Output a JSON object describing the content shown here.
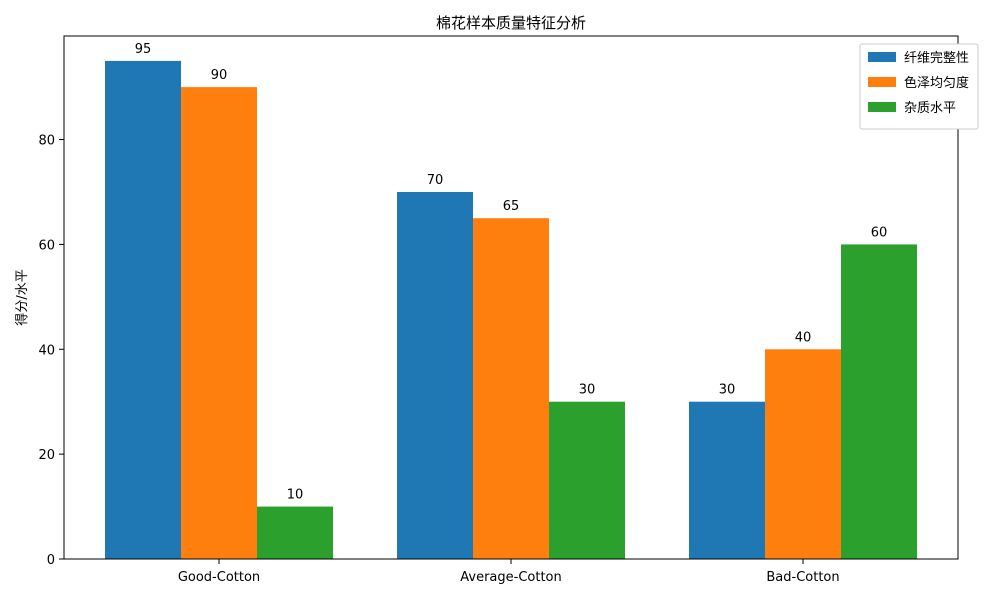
{
  "chart_data": {
    "type": "bar",
    "title": "棉花样本质量特征分析",
    "xlabel": "",
    "ylabel": "得分/水平",
    "categories": [
      "Good-Cotton",
      "Average-Cotton",
      "Bad-Cotton"
    ],
    "series": [
      {
        "name": "纤维完整性",
        "values": [
          95,
          70,
          30
        ],
        "color": "#1f77b4"
      },
      {
        "name": "色泽均匀度",
        "values": [
          90,
          65,
          40
        ],
        "color": "#ff7f0e"
      },
      {
        "name": "杂质水平",
        "values": [
          10,
          30,
          60
        ],
        "color": "#2ca02c"
      }
    ],
    "ylim": [
      0,
      99.75
    ],
    "yticks": [
      0,
      20,
      40,
      60,
      80
    ],
    "grid": false,
    "legend_position": "top-right",
    "data_labels": true
  }
}
